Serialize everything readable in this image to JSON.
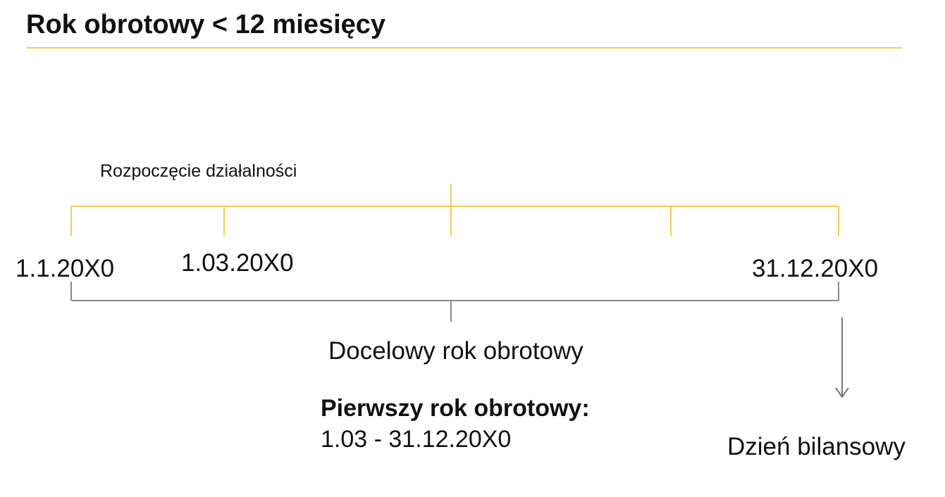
{
  "title": "Rok obrotowy < 12 miesięcy",
  "labels": {
    "start_activity": "Rozpoczęcie działalności",
    "date_start": "1.1.20X0",
    "date_march": "1.03.20X0",
    "date_end": "31.12.20X0",
    "target_year": "Docelowy rok obrotowy",
    "first_year_title": "Pierwszy rok obrotowy:",
    "first_year_range": "1.03 - 31.12.20X0",
    "balance_day": "Dzień bilansowy"
  },
  "colors": {
    "accent": "#f2cc52",
    "bracket": "#8a8a8a",
    "text": "#111111"
  }
}
